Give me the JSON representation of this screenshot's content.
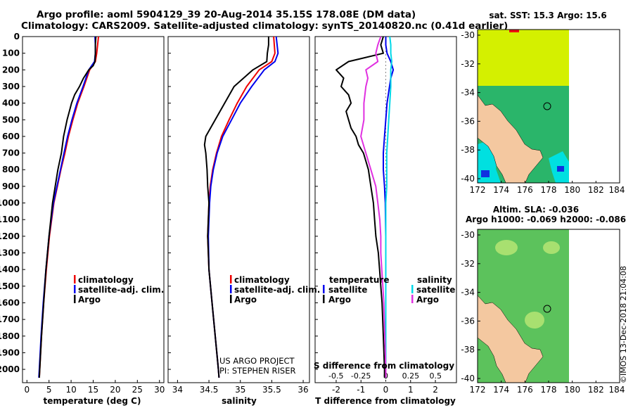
{
  "header": {
    "title_line1": "Argo profile: aoml 5904129_39 20-Aug-2014 35.15S 178.08E (DM data)",
    "title_line2": "Climatology: CARS2009. Satellite-adjusted climatology: synTS_20140820.nc (0.41d earlier)"
  },
  "maps": {
    "sst_title": "sat. SST: 15.3 Argo: 15.6",
    "sla_title_line1": "Altim. SLA: -0.036",
    "sla_title_line2": "Argo h1000: -0.069 h2000: -0.086",
    "lon_ticks": [
      "172",
      "174",
      "176",
      "178",
      "180",
      "182",
      "184"
    ],
    "lat_ticks": [
      "-30",
      "-32",
      "-34",
      "-36",
      "-38",
      "-40"
    ]
  },
  "footer": {
    "project_line1": "US ARGO PROJECT",
    "project_line2": "PI: STEPHEN RISER",
    "stamp": "©IMOS 13-Dec-2018 21:04:08"
  },
  "colors": {
    "climatology": "#ee0000",
    "satellite": "#0000ee",
    "argo": "#000000",
    "salinity_satellite": "#00d8e8",
    "salinity_argo": "#e030e0",
    "sst_yellow": "#d4f000",
    "sst_green": "#2ab56a",
    "land": "#f4c8a0",
    "sla_green": "#5cc25c"
  },
  "chart_data": [
    {
      "type": "line",
      "xlabel": "temperature (deg C)",
      "ylabel": "",
      "xlim": [
        -1,
        31
      ],
      "ylim": [
        2080,
        0
      ],
      "x_ticks": [
        "0",
        "5",
        "10",
        "15",
        "20",
        "25",
        "30"
      ],
      "y_ticks": [
        "0",
        "100",
        "200",
        "300",
        "400",
        "500",
        "600",
        "700",
        "800",
        "900",
        "1000",
        "1100",
        "1200",
        "1300",
        "1400",
        "1500",
        "1600",
        "1700",
        "1800",
        "1900",
        "2000"
      ],
      "legend": [
        "climatology",
        "satellite-adj. clim.",
        "Argo"
      ],
      "series": [
        {
          "name": "climatology",
          "color_key": "climatology",
          "depth": [
            0,
            50,
            100,
            150,
            200,
            300,
            400,
            500,
            600,
            700,
            800,
            900,
            1000,
            1200,
            1400,
            1600,
            1800,
            2000,
            2050
          ],
          "values": [
            16.2,
            16.0,
            15.8,
            15.5,
            14.2,
            12.9,
            11.5,
            10.4,
            9.4,
            8.6,
            7.7,
            6.9,
            6.1,
            5.1,
            4.4,
            3.8,
            3.3,
            2.9,
            2.8
          ]
        },
        {
          "name": "satellite-adj. clim.",
          "color_key": "satellite",
          "depth": [
            0,
            50,
            100,
            150,
            200,
            300,
            400,
            500,
            600,
            700,
            800,
            900,
            1000,
            1200,
            1400,
            1600,
            1800,
            2000,
            2050
          ],
          "values": [
            15.4,
            15.5,
            15.5,
            15.3,
            14.0,
            12.7,
            11.3,
            10.2,
            9.2,
            8.4,
            7.6,
            6.8,
            6.0,
            5.0,
            4.3,
            3.7,
            3.2,
            2.8,
            2.7
          ]
        },
        {
          "name": "Argo",
          "color_key": "argo",
          "depth": [
            0,
            50,
            100,
            150,
            175,
            200,
            250,
            300,
            350,
            400,
            450,
            500,
            600,
            700,
            800,
            900,
            1000,
            1200,
            1400,
            1600,
            1800,
            2000,
            2050
          ],
          "values": [
            15.6,
            15.5,
            15.5,
            15.4,
            15.0,
            14.0,
            12.8,
            11.9,
            10.8,
            10.1,
            9.6,
            9.1,
            8.3,
            7.8,
            7.0,
            6.4,
            5.8,
            5.0,
            4.3,
            3.8,
            3.3,
            2.9,
            2.8
          ]
        }
      ]
    },
    {
      "type": "line",
      "xlabel": "salinity",
      "ylabel": "",
      "xlim": [
        33.85,
        36.1
      ],
      "ylim": [
        2080,
        0
      ],
      "x_ticks": [
        "34",
        "34.5",
        "35",
        "35.5",
        "36"
      ],
      "legend": [
        "climatology",
        "satellite-adj. clim.",
        "Argo"
      ],
      "series": [
        {
          "name": "climatology",
          "color_key": "climatology",
          "depth": [
            0,
            100,
            150,
            200,
            300,
            400,
            500,
            600,
            700,
            800,
            900,
            1000,
            1200,
            1400,
            1600,
            1800,
            2000,
            2050
          ],
          "values": [
            35.53,
            35.55,
            35.5,
            35.3,
            35.1,
            34.95,
            34.82,
            34.7,
            34.62,
            34.56,
            34.52,
            34.5,
            34.48,
            34.5,
            34.55,
            34.6,
            34.65,
            34.66
          ]
        },
        {
          "name": "satellite-adj. clim.",
          "color_key": "satellite",
          "depth": [
            0,
            100,
            150,
            200,
            300,
            400,
            500,
            600,
            700,
            800,
            900,
            1000,
            1200,
            1400,
            1600,
            1800,
            2000,
            2050
          ],
          "values": [
            35.57,
            35.6,
            35.55,
            35.38,
            35.18,
            35.0,
            34.86,
            34.72,
            34.63,
            34.57,
            34.53,
            34.51,
            34.49,
            34.5,
            34.55,
            34.6,
            34.65,
            34.66
          ]
        },
        {
          "name": "Argo",
          "color_key": "argo",
          "depth": [
            0,
            50,
            100,
            150,
            200,
            250,
            300,
            400,
            500,
            600,
            650,
            700,
            800,
            900,
            1000,
            1200,
            1400,
            1600,
            1800,
            2000,
            2050
          ],
          "values": [
            35.45,
            35.45,
            35.43,
            35.42,
            35.2,
            35.05,
            34.9,
            34.75,
            34.6,
            34.45,
            34.43,
            34.45,
            34.47,
            34.48,
            34.5,
            34.48,
            34.5,
            34.55,
            34.6,
            34.65,
            34.66
          ]
        }
      ]
    },
    {
      "type": "line",
      "xlabel": "T difference from climatology",
      "ylabel": "",
      "xlim": [
        -2.85,
        2.85
      ],
      "ylim": [
        2080,
        0
      ],
      "x_ticks": [
        "-2",
        "-1",
        "0",
        "1",
        "2"
      ],
      "secondary_xlabel": "S difference from climatology",
      "secondary_xlim": [
        -0.71,
        0.71
      ],
      "secondary_x_ticks": [
        "-0.5",
        "-0.25",
        "0",
        "0.25",
        "0.5"
      ],
      "legend_temperature": {
        "heading": "temperature",
        "entries": [
          "satellite",
          "Argo"
        ]
      },
      "legend_salinity": {
        "heading": "salinity",
        "entries": [
          "satellite",
          "Argo"
        ]
      },
      "series": [
        {
          "name": "satellite",
          "group": "temperature",
          "color_key": "satellite",
          "depth": [
            0,
            50,
            100,
            150,
            200,
            250,
            300,
            400,
            500,
            600,
            700,
            800,
            900,
            1000,
            1200,
            1400,
            1600,
            1800,
            2000,
            2050
          ],
          "values": [
            0.0,
            0.0,
            0.05,
            0.2,
            0.3,
            0.2,
            0.15,
            0.05,
            0.0,
            -0.05,
            -0.1,
            -0.1,
            -0.05,
            -0.02,
            0.0,
            0.0,
            0.0,
            0.0,
            0.0,
            0.0
          ]
        },
        {
          "name": "Argo",
          "group": "temperature",
          "color_key": "argo",
          "depth": [
            0,
            50,
            100,
            150,
            200,
            250,
            300,
            350,
            400,
            450,
            500,
            550,
            600,
            650,
            700,
            750,
            800,
            900,
            1000,
            1100,
            1200,
            1300,
            1400,
            1500,
            1600,
            1800,
            2000,
            2050
          ],
          "values": [
            -0.1,
            -0.2,
            -0.1,
            -1.5,
            -2.0,
            -1.7,
            -1.8,
            -1.5,
            -1.4,
            -1.6,
            -1.5,
            -1.4,
            -1.2,
            -1.1,
            -0.9,
            -0.8,
            -0.7,
            -0.6,
            -0.5,
            -0.45,
            -0.4,
            -0.3,
            -0.25,
            -0.2,
            -0.15,
            -0.1,
            -0.05,
            -0.05
          ]
        },
        {
          "name": "satellite",
          "group": "salinity",
          "color_key": "salinity_satellite",
          "depth": [
            0,
            50,
            100,
            150,
            200,
            300,
            400,
            500,
            600,
            700,
            800,
            900,
            1000,
            1200,
            1400,
            1600,
            1800,
            2000,
            2050
          ],
          "values": [
            0.04,
            0.05,
            0.05,
            0.06,
            0.05,
            0.05,
            0.04,
            0.03,
            0.02,
            0.01,
            0.01,
            0.01,
            0.0,
            0.0,
            0.0,
            0.0,
            0.0,
            0.0,
            0.0
          ]
        },
        {
          "name": "Argo",
          "group": "salinity",
          "color_key": "salinity_argo",
          "depth": [
            0,
            50,
            100,
            150,
            200,
            250,
            300,
            400,
            500,
            600,
            700,
            800,
            900,
            1000,
            1100,
            1200,
            1300,
            1400,
            1500,
            1600,
            1800,
            2000,
            2050
          ],
          "values": [
            -0.05,
            -0.08,
            -0.1,
            -0.08,
            -0.2,
            -0.18,
            -0.2,
            -0.22,
            -0.22,
            -0.25,
            -0.2,
            -0.15,
            -0.1,
            -0.08,
            -0.06,
            -0.05,
            -0.05,
            -0.04,
            -0.03,
            -0.02,
            -0.01,
            0.0,
            0.0
          ]
        }
      ]
    }
  ]
}
